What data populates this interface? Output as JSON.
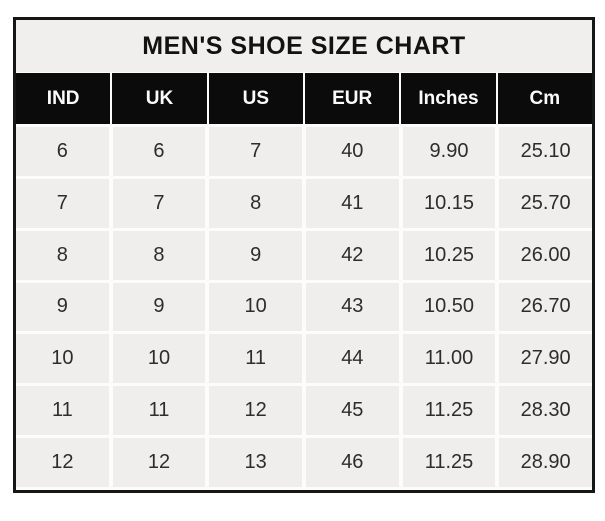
{
  "page_title": "MEN'S SHOE SIZE CHART",
  "chart_data": {
    "type": "table",
    "title": "MEN'S SHOE SIZE CHART",
    "columns": [
      "IND",
      "UK",
      "US",
      "EUR",
      "Inches",
      "Cm"
    ],
    "rows": [
      [
        "6",
        "6",
        "7",
        "40",
        "9.90",
        "25.10"
      ],
      [
        "7",
        "7",
        "8",
        "41",
        "10.15",
        "25.70"
      ],
      [
        "8",
        "8",
        "9",
        "42",
        "10.25",
        "26.00"
      ],
      [
        "9",
        "9",
        "10",
        "43",
        "10.50",
        "26.70"
      ],
      [
        "10",
        "10",
        "11",
        "44",
        "11.00",
        "27.90"
      ],
      [
        "11",
        "11",
        "12",
        "45",
        "11.25",
        "28.30"
      ],
      [
        "12",
        "12",
        "13",
        "46",
        "11.25",
        "28.90"
      ]
    ],
    "layout": {
      "grid": "on",
      "header_position": "top"
    }
  },
  "colors": {
    "outer_border": "#161616",
    "title_background": "#f1efee",
    "title_text": "#121212",
    "header_background": "#0b0b0b",
    "header_text": "#fbfbfb",
    "cell_background": "#efeeec",
    "cell_text": "#2d2d2d",
    "grid_gap": "#fcfcfb"
  }
}
